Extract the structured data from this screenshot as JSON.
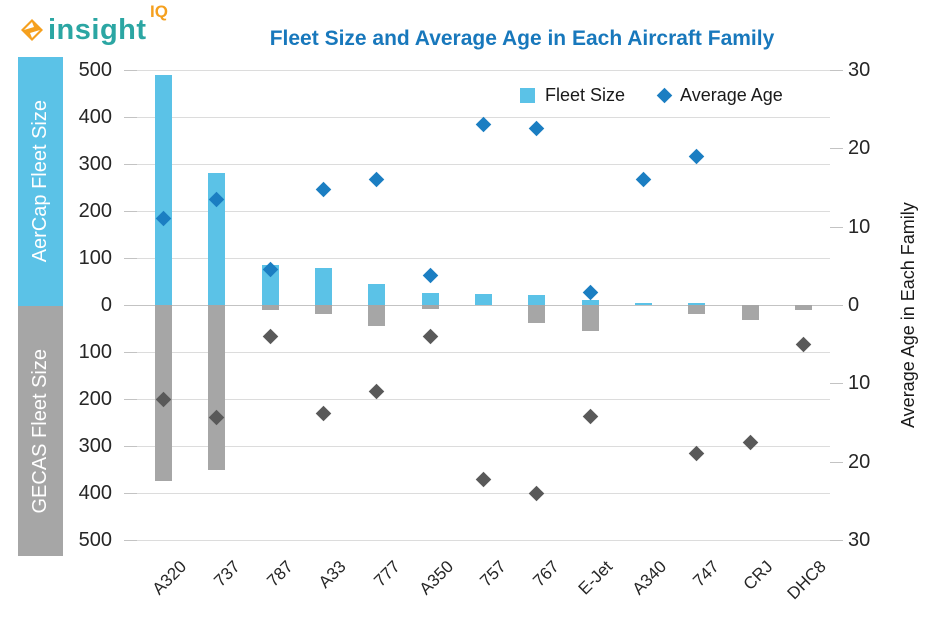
{
  "logo": {
    "brand": "insight",
    "superscript": "IQ"
  },
  "title": "Fleet Size and Average Age in Each Aircraft Family",
  "axes": {
    "left_top_band_label": "AerCap Fleet Size",
    "left_bottom_band_label": "GECAS Fleet Size",
    "left_ticks": [
      "500",
      "400",
      "300",
      "200",
      "100",
      "0",
      "100",
      "200",
      "300",
      "400",
      "500"
    ],
    "right_ticks": [
      "30",
      "20",
      "10",
      "0",
      "10",
      "20",
      "30"
    ],
    "right_axis_title": "Average Age in Each Family"
  },
  "legend": {
    "fleet_size_label": "Fleet Size",
    "average_age_label": "Average Age"
  },
  "colors": {
    "bar_blue": "#5BC2E7",
    "bar_gray": "#A6A6A6",
    "diamond_blue": "#1B7EC2",
    "diamond_gray": "#595959",
    "title_blue": "#1878BC",
    "logo_teal": "#2BA6A3",
    "logo_orange": "#F5A01E",
    "gridline": "#DCDCDC"
  },
  "chart_data": {
    "type": "bar",
    "subtype": "diverging-bars-with-diamond-scatter-overlay",
    "title": "Fleet Size and Average Age in Each Aircraft Family",
    "categories": [
      "A320",
      "737",
      "787",
      "A33",
      "777",
      "A350",
      "757",
      "767",
      "E-Jet",
      "A340",
      "747",
      "CRJ",
      "DHC8"
    ],
    "series": [
      {
        "name": "AerCap Fleet Size",
        "kind": "bar",
        "direction": "up",
        "color": "#5BC2E7",
        "values": [
          490,
          280,
          85,
          78,
          45,
          25,
          23,
          21,
          10,
          5,
          5,
          0,
          0
        ]
      },
      {
        "name": "GECAS Fleet Size",
        "kind": "bar",
        "direction": "down",
        "color": "#A6A6A6",
        "values": [
          375,
          350,
          10,
          20,
          45,
          8,
          0,
          38,
          55,
          0,
          20,
          32,
          10
        ]
      },
      {
        "name": "AerCap Average Age (years)",
        "kind": "scatter",
        "marker": "diamond",
        "direction": "up",
        "color": "#1B7EC2",
        "values": [
          11,
          13.5,
          4.5,
          14.8,
          16,
          3.8,
          23,
          22.5,
          1.6,
          16,
          19,
          null,
          null
        ]
      },
      {
        "name": "GECAS Average Age (years)",
        "kind": "scatter",
        "marker": "diamond",
        "direction": "down",
        "color": "#595959",
        "values": [
          12,
          14.3,
          4,
          13.8,
          11,
          4,
          22.3,
          24,
          14.2,
          null,
          19,
          17.5,
          5
        ]
      }
    ],
    "fleet_axis": {
      "label_top": "AerCap Fleet Size",
      "label_bottom": "GECAS Fleet Size",
      "range": [
        0,
        500
      ],
      "tick_step": 100
    },
    "age_axis": {
      "label": "Average Age in Each Family",
      "range": [
        0,
        30
      ],
      "tick_step": 10
    },
    "grid": true,
    "legend_position": "top-inside",
    "legend_entries": [
      "Fleet Size",
      "Average Age"
    ]
  }
}
